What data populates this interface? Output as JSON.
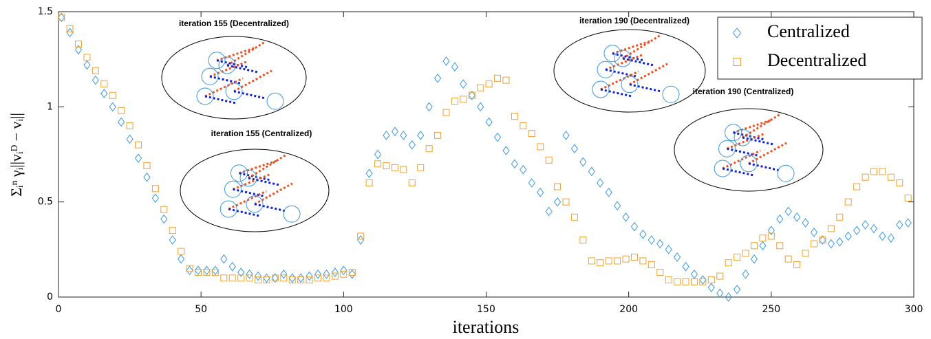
{
  "chart_data": {
    "type": "scatter",
    "xlabel": "iterations",
    "ylabel": "Σᵢⁿ γᵢ||vᵢᴰ − vᵢ||",
    "x": [
      1,
      4,
      7,
      10,
      13,
      16,
      19,
      22,
      25,
      28,
      31,
      34,
      37,
      40,
      43,
      46,
      49,
      52,
      55,
      58,
      61,
      64,
      67,
      70,
      73,
      76,
      79,
      82,
      85,
      88,
      91,
      94,
      97,
      100,
      103,
      106,
      109,
      112,
      115,
      118,
      121,
      124,
      127,
      130,
      133,
      136,
      139,
      142,
      145,
      148,
      151,
      154,
      157,
      160,
      163,
      166,
      169,
      172,
      175,
      178,
      181,
      184,
      187,
      190,
      193,
      196,
      199,
      202,
      205,
      208,
      211,
      214,
      217,
      220,
      223,
      226,
      229,
      232,
      235,
      238,
      241,
      244,
      247,
      250,
      253,
      256,
      259,
      262,
      265,
      268,
      271,
      274,
      277,
      280,
      283,
      286,
      289,
      292,
      295,
      298
    ],
    "series": [
      {
        "name": "Centralized",
        "color": "#3a97e0",
        "marker": "diamond",
        "values": [
          1.47,
          1.39,
          1.3,
          1.22,
          1.14,
          1.07,
          1.0,
          0.92,
          0.83,
          0.73,
          0.63,
          0.52,
          0.41,
          0.3,
          0.2,
          0.14,
          0.14,
          0.14,
          0.14,
          0.2,
          0.16,
          0.13,
          0.12,
          0.11,
          0.1,
          0.1,
          0.12,
          0.1,
          0.1,
          0.11,
          0.12,
          0.12,
          0.13,
          0.14,
          0.12,
          0.3,
          0.65,
          0.75,
          0.85,
          0.87,
          0.85,
          0.8,
          0.85,
          1.0,
          1.15,
          1.24,
          1.21,
          1.12,
          1.06,
          1.0,
          0.92,
          0.84,
          0.77,
          0.7,
          0.67,
          0.6,
          0.55,
          0.45,
          0.5,
          0.85,
          0.78,
          0.71,
          0.66,
          0.6,
          0.55,
          0.48,
          0.42,
          0.37,
          0.33,
          0.3,
          0.28,
          0.25,
          0.21,
          0.16,
          0.12,
          0.09,
          0.05,
          0.02,
          0.0,
          0.04,
          0.12,
          0.2,
          0.27,
          0.35,
          0.41,
          0.45,
          0.42,
          0.39,
          0.34,
          0.3,
          0.28,
          0.29,
          0.32,
          0.35,
          0.38,
          0.36,
          0.32,
          0.31,
          0.38,
          0.39
        ]
      },
      {
        "name": "Decentralized",
        "color": "#f0a030",
        "marker": "square",
        "values": [
          1.47,
          1.41,
          1.33,
          1.26,
          1.19,
          1.12,
          1.06,
          0.98,
          0.9,
          0.8,
          0.69,
          0.57,
          0.46,
          0.35,
          0.24,
          0.15,
          0.13,
          0.13,
          0.13,
          0.1,
          0.1,
          0.1,
          0.1,
          0.09,
          0.09,
          0.1,
          0.1,
          0.09,
          0.09,
          0.09,
          0.1,
          0.1,
          0.11,
          0.12,
          0.13,
          0.32,
          0.6,
          0.7,
          0.69,
          0.68,
          0.67,
          0.6,
          0.68,
          0.78,
          0.85,
          0.97,
          1.03,
          1.04,
          1.06,
          1.1,
          1.12,
          1.15,
          1.14,
          0.95,
          0.9,
          0.86,
          0.79,
          0.72,
          0.58,
          0.5,
          0.42,
          0.3,
          0.19,
          0.18,
          0.19,
          0.19,
          0.2,
          0.21,
          0.19,
          0.17,
          0.13,
          0.09,
          0.08,
          0.08,
          0.08,
          0.08,
          0.09,
          0.11,
          0.18,
          0.21,
          0.23,
          0.27,
          0.31,
          0.32,
          0.27,
          0.2,
          0.17,
          0.23,
          0.28,
          0.3,
          0.36,
          0.42,
          0.5,
          0.58,
          0.63,
          0.66,
          0.66,
          0.63,
          0.6,
          0.52
        ]
      }
    ],
    "xlim": [
      0,
      300
    ],
    "xticks": [
      0,
      50,
      100,
      150,
      200,
      250,
      300
    ],
    "ylim": [
      0,
      1.5
    ],
    "yticks": [
      0,
      0.5,
      1,
      1.5
    ],
    "legend": "upper right",
    "annotations": [
      "iteration 155 (Decentralized)",
      "iteration 155 (Centralized)",
      "iteration 190 (Decentralized)",
      "iteration 190 (Centralized)"
    ]
  }
}
